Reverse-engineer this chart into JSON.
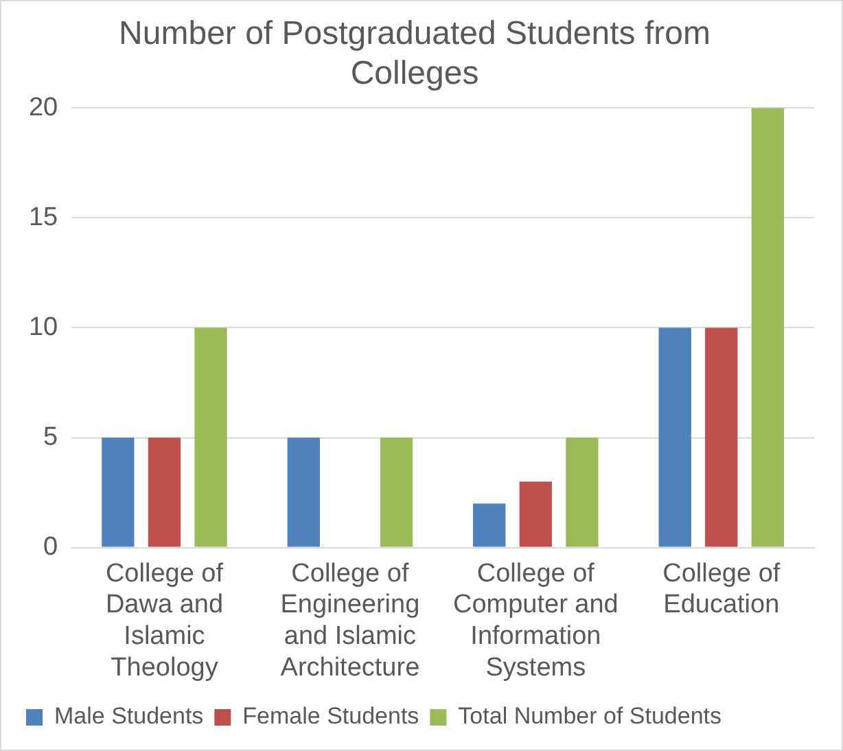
{
  "chart_data": {
    "type": "bar",
    "title": "Number of Postgraduated Students from Colleges",
    "categories": [
      "College of Dawa and Islamic Theology",
      "College of Engineering and Islamic Architecture",
      "College of Computer and Information Systems",
      "College of Education"
    ],
    "series": [
      {
        "name": "Male Students",
        "color": "#4f81bd",
        "values": [
          5,
          5,
          2,
          10
        ]
      },
      {
        "name": "Female Students",
        "color": "#c0504d",
        "values": [
          5,
          0,
          3,
          10
        ]
      },
      {
        "name": "Total Number of Students",
        "color": "#9bbb59",
        "values": [
          10,
          5,
          5,
          20
        ]
      }
    ],
    "ylim": [
      0,
      20
    ],
    "yticks": [
      0,
      5,
      10,
      15,
      20
    ],
    "grid": "y",
    "legend": "bottom"
  }
}
